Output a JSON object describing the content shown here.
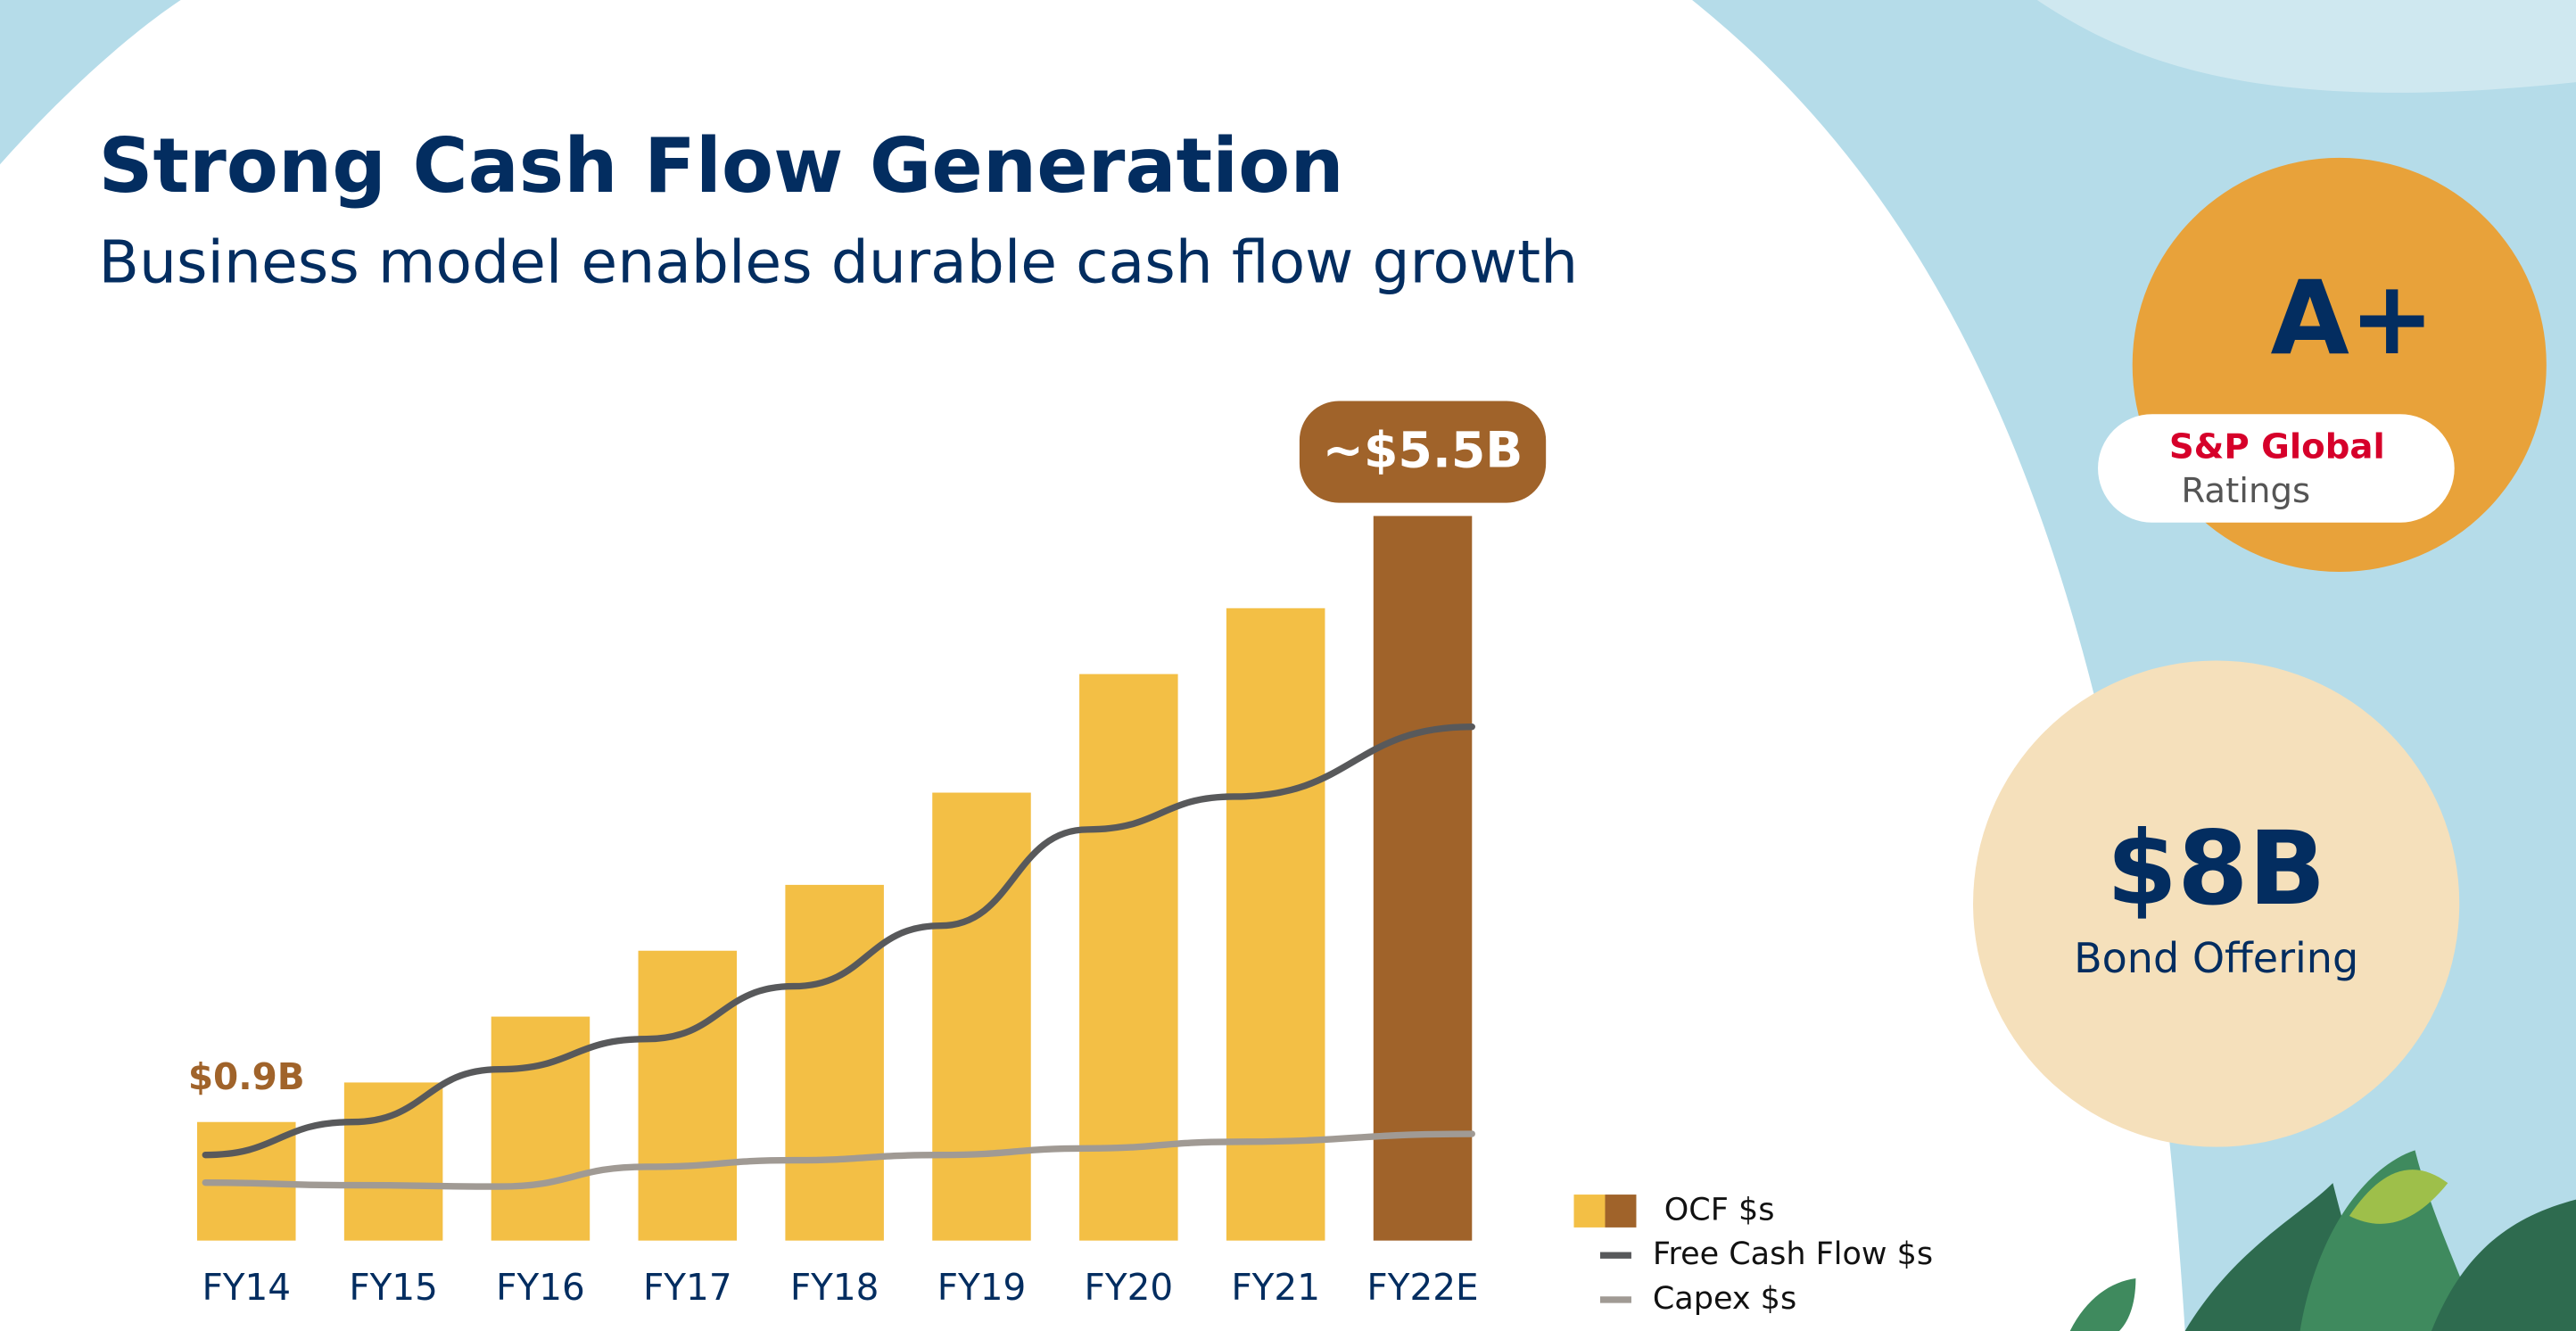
{
  "chart_data": {
    "type": "bar",
    "title": "Strong Cash Flow Generation",
    "subtitle": "Business model enables durable cash flow growth",
    "categories": [
      "FY14",
      "FY15",
      "FY16",
      "FY17",
      "FY18",
      "FY19",
      "FY20",
      "FY21",
      "FY22E"
    ],
    "series": [
      {
        "name": "OCF $s",
        "type": "bar",
        "colors": [
          "#f3bf45",
          "#f3bf45",
          "#f3bf45",
          "#f3bf45",
          "#f3bf45",
          "#f3bf45",
          "#f3bf45",
          "#f3bf45",
          "#a0632a"
        ],
        "values": [
          0.9,
          1.2,
          1.7,
          2.2,
          2.7,
          3.4,
          4.3,
          4.8,
          5.5
        ],
        "value_labels": [
          "$0.9B",
          null,
          null,
          null,
          null,
          null,
          null,
          null,
          "~$5.5B"
        ]
      },
      {
        "name": "Free Cash Flow $s",
        "type": "line",
        "color": "#58595b",
        "values": [
          0.65,
          0.9,
          1.3,
          1.53,
          1.93,
          2.39,
          3.12,
          3.37,
          3.9
        ]
      },
      {
        "name": "Capex $s",
        "type": "line",
        "color": "#a09a94",
        "values": [
          0.44,
          0.42,
          0.41,
          0.56,
          0.61,
          0.65,
          0.7,
          0.75,
          0.81
        ]
      }
    ]
  },
  "rating": {
    "grade": "A+",
    "agency": "S&P Global",
    "agency_sub": "Ratings"
  },
  "bond": {
    "amount": "$8B",
    "label": "Bond Offering"
  }
}
